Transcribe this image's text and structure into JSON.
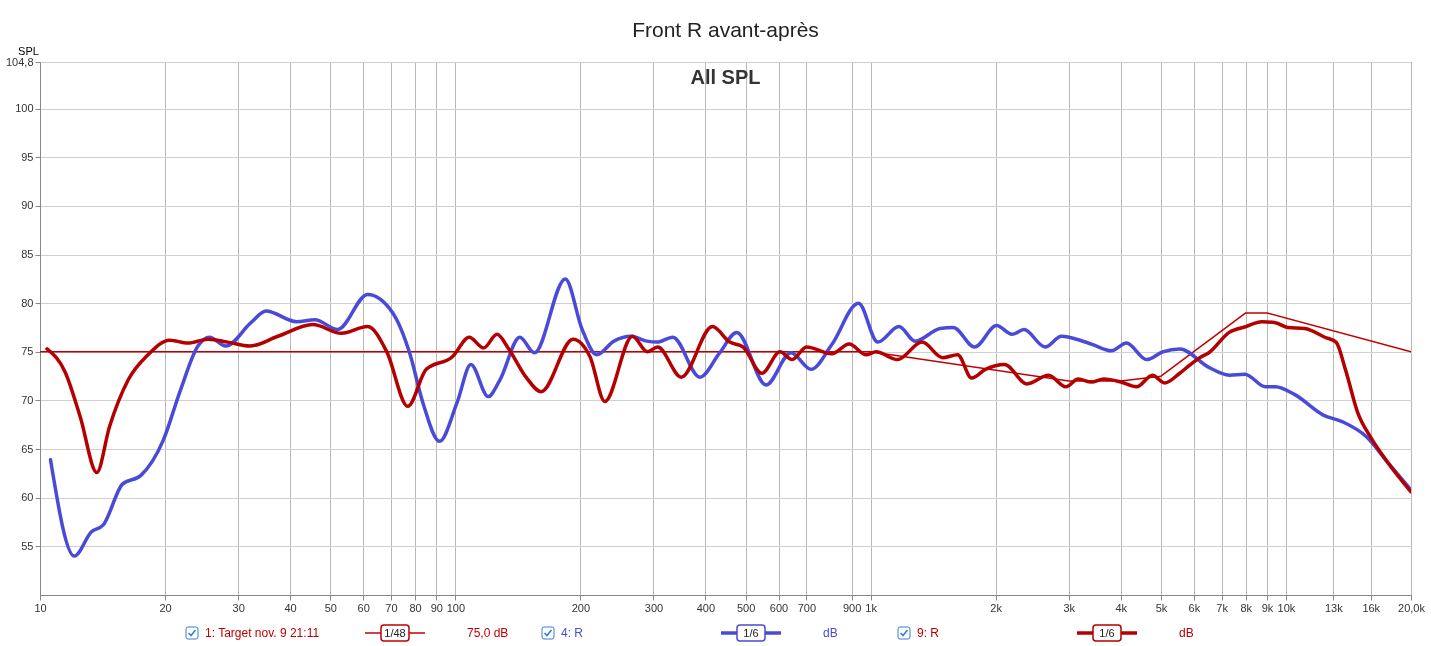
{
  "chart_data": {
    "type": "line",
    "title": "Front R avant-après",
    "subtitle": "All SPL",
    "ylabel": "SPL",
    "xlim": [
      10,
      20000
    ],
    "ylim": [
      50,
      104.8
    ],
    "log": "x",
    "grid": true,
    "legend": "bottom",
    "marker": "none",
    "line_style": "solid",
    "xticks": [
      10,
      20,
      30,
      40,
      50,
      60,
      70,
      80,
      90,
      100,
      200,
      300,
      400,
      500,
      600,
      700,
      {
        "value": 900,
        "label": "900"
      },
      {
        "value": 1000,
        "label": "1k"
      },
      {
        "value": 2000,
        "label": "2k"
      },
      {
        "value": 3000,
        "label": "3k"
      },
      {
        "value": 4000,
        "label": "4k"
      },
      {
        "value": 5000,
        "label": "5k"
      },
      {
        "value": 6000,
        "label": "6k"
      },
      {
        "value": 7000,
        "label": "7k"
      },
      {
        "value": 8000,
        "label": "8k"
      },
      {
        "value": 9000,
        "label": "9k"
      },
      {
        "value": 10000,
        "label": "10k"
      },
      {
        "value": 13000,
        "label": "13k"
      },
      {
        "value": 16000,
        "label": "16k"
      },
      {
        "value": 20000,
        "label": "20,0k"
      }
    ],
    "yticks": [
      55,
      60,
      65,
      70,
      75,
      80,
      85,
      90,
      95,
      100,
      {
        "value": 104.8,
        "label": "104,8"
      }
    ],
    "annotations": [
      "1/48",
      "75,0 dB",
      "1/6",
      "dB",
      "1/6",
      "dB"
    ],
    "series": [
      {
        "name": "1: Target nov. 9 21:11",
        "color": "#c00000",
        "x": [
          10,
          1000,
          3000,
          4000,
          5000,
          8000,
          9000,
          20000
        ],
        "values": [
          75,
          75,
          72,
          72,
          72.5,
          79,
          79,
          75
        ]
      },
      {
        "name": "4: R",
        "color": "#4a4ad8",
        "x": [
          10.6,
          12.1,
          13.3,
          14.2,
          15.8,
          17.5,
          19.8,
          21.8,
          24,
          25.6,
          28,
          32.2,
          35,
          41.5,
          45.9,
          52.1,
          61.5,
          70.7,
          77.6,
          83.5,
          91.6,
          101,
          109,
          120,
          128,
          143,
          155,
          184,
          202,
          219,
          241,
          265,
          289,
          306,
          334,
          388,
          433,
          476,
          560,
          643,
          719,
          805,
          935,
          1040,
          1170,
          1280,
          1470,
          1580,
          1780,
          2010,
          2190,
          2340,
          2630,
          2880,
          3130,
          3400,
          3800,
          4130,
          4620,
          5050,
          5550,
          6520,
          7300,
          7960,
          8930,
          9430,
          10500,
          12300,
          13700,
          15600,
          17600,
          20000
        ],
        "values": [
          63.9,
          54.0,
          56.5,
          57.2,
          61.4,
          62.3,
          65.9,
          71.1,
          75.6,
          76.5,
          75.6,
          78.0,
          79.2,
          78.1,
          78.3,
          77.3,
          80.9,
          79.0,
          74.9,
          69.8,
          65.8,
          69.8,
          73.7,
          70.4,
          72.1,
          76.5,
          74.9,
          82.5,
          77.3,
          74.7,
          76.1,
          76.6,
          76.1,
          76.0,
          76.5,
          72.4,
          74.9,
          77.0,
          71.6,
          74.9,
          73.2,
          75.7,
          80.0,
          76.0,
          77.6,
          76.1,
          77.4,
          77.5,
          75.5,
          77.7,
          76.8,
          77.3,
          75.5,
          76.6,
          76.3,
          75.8,
          75.1,
          75.9,
          74.2,
          75.0,
          75.3,
          73.4,
          72.6,
          72.7,
          71.4,
          71.4,
          70.6,
          68.5,
          67.8,
          66.3,
          63.6,
          60.8
        ]
      },
      {
        "name": "9: R",
        "color": "#b40000",
        "x": [
          10.4,
          11.5,
          12.5,
          13.7,
          14.7,
          16.3,
          18.2,
          20.5,
          22.7,
          25.4,
          28.3,
          32,
          37.4,
          45.4,
          53.2,
          61.5,
          68.4,
          76.8,
          85.1,
          98.4,
          108,
          117,
          126,
          134,
          148,
          161,
          192,
          211,
          229,
          267,
          290,
          307,
          350,
          416,
          458,
          493,
          547,
          605,
          647,
          701,
          806,
          888,
          975,
          1030,
          1160,
          1330,
          1490,
          1620,
          1750,
          1890,
          2100,
          2380,
          2680,
          2950,
          3160,
          3400,
          3640,
          4000,
          4370,
          4770,
          5100,
          5550,
          5850,
          6200,
          6520,
          7300,
          8010,
          8750,
          9430,
          10100,
          11100,
          12400,
          13200,
          13900,
          14900,
          16000,
          17600,
          20000
        ],
        "values": [
          75.3,
          72.9,
          68.3,
          62.6,
          67.3,
          72.1,
          74.7,
          76.2,
          75.9,
          76.3,
          76.0,
          75.6,
          76.6,
          77.8,
          76.9,
          77.6,
          75.0,
          69.4,
          73.2,
          74.5,
          76.5,
          75.4,
          76.8,
          75.4,
          72.4,
          70.9,
          76.3,
          74.5,
          69.9,
          76.6,
          75.0,
          75.5,
          72.4,
          77.6,
          76.0,
          75.5,
          72.8,
          75.0,
          74.2,
          75.5,
          74.8,
          75.8,
          74.7,
          75.0,
          74.2,
          76.0,
          74.4,
          74.7,
          72.3,
          73.2,
          73.7,
          71.7,
          72.6,
          71.4,
          72.2,
          71.9,
          72.2,
          71.9,
          71.4,
          72.6,
          71.8,
          72.8,
          73.6,
          74.4,
          74.9,
          77.0,
          77.6,
          78.1,
          78.0,
          77.5,
          77.4,
          76.5,
          76.0,
          73.2,
          68.7,
          66.2,
          63.6,
          60.6
        ]
      }
    ]
  }
}
